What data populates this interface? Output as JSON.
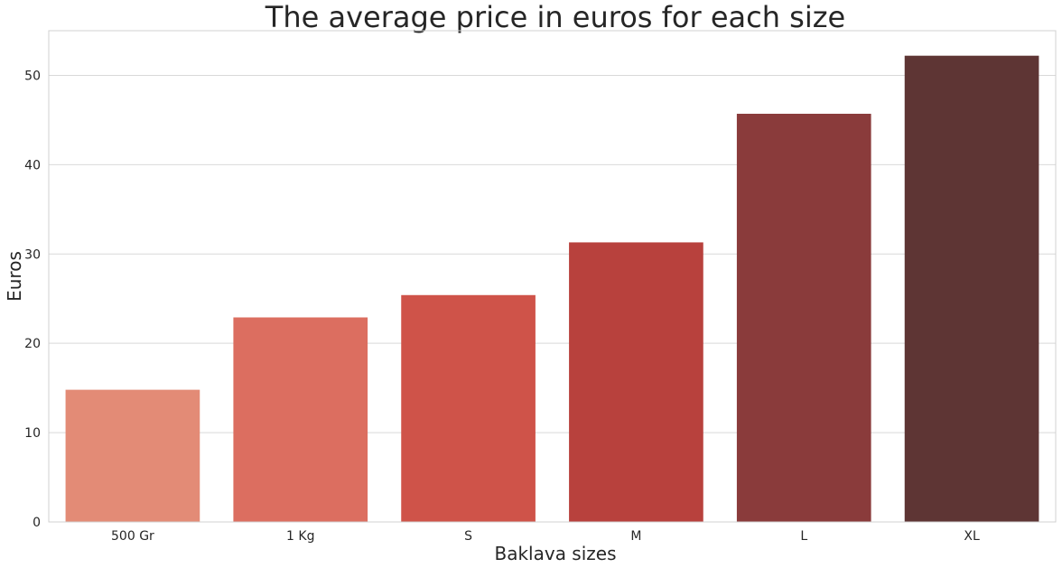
{
  "chart_data": {
    "type": "bar",
    "title": "The average price in euros for each size",
    "xlabel": "Baklava sizes",
    "ylabel": "Euros",
    "categories": [
      "500 Gr",
      "1 Kg",
      "S",
      "M",
      "L",
      "XL"
    ],
    "values": [
      14.8,
      22.9,
      25.4,
      31.3,
      45.7,
      52.2
    ],
    "colors": [
      "#e38b76",
      "#dc6e60",
      "#cf5349",
      "#b8413d",
      "#8a3b3b",
      "#5e3534"
    ],
    "ylim": [
      0,
      55
    ],
    "yticks": [
      0,
      10,
      20,
      30,
      40,
      50
    ],
    "grid": true,
    "legend": "none"
  }
}
